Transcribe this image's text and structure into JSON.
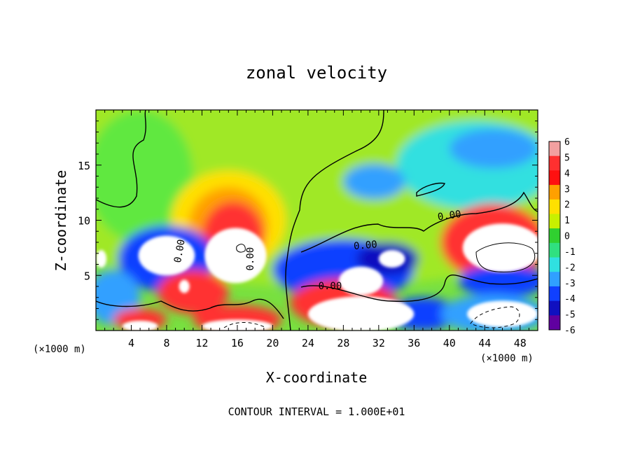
{
  "chart_data": {
    "type": "heatmap",
    "title": "zonal velocity",
    "xlabel": "X-coordinate",
    "ylabel": "Z-coordinate",
    "x_unit_label": "(×1000 m)",
    "x_unit_label_right": "(×1000 m)",
    "footer": "CONTOUR INTERVAL = 1.000E+01",
    "xlim": [
      0,
      50
    ],
    "ylim": [
      0,
      20
    ],
    "x_ticks": [
      4,
      8,
      12,
      16,
      20,
      24,
      28,
      32,
      36,
      40,
      44,
      48
    ],
    "y_ticks": [
      5,
      10,
      15
    ],
    "colorbar": {
      "levels": [
        6,
        5,
        4,
        3,
        2,
        1,
        0,
        -1,
        -2,
        -3,
        -4,
        -5,
        -6
      ],
      "colors": [
        "#f2a0a0",
        "#ff3030",
        "#ff1010",
        "#ffa000",
        "#ffe000",
        "#c8f000",
        "#30d030",
        "#30e080",
        "#30e0e0",
        "#30a0ff",
        "#1040ff",
        "#1010c0",
        "#6000a0"
      ]
    },
    "contour_labels": [
      {
        "text": "0.00",
        "x": 9.5,
        "y": 7.2,
        "angle": -80
      },
      {
        "text": "0.00",
        "x": 17.5,
        "y": 6.5,
        "angle": -90
      },
      {
        "text": "0.00",
        "x": 26.5,
        "y": 4.0,
        "angle": 0
      },
      {
        "text": "0.00",
        "x": 30.5,
        "y": 7.7,
        "angle": -5
      },
      {
        "text": "0.00",
        "x": 40.0,
        "y": 10.4,
        "angle": -8
      }
    ],
    "field_blobs": [
      {
        "cx": 25,
        "cy": 14,
        "rx": 40,
        "ry": 10,
        "color": "#a0e828"
      },
      {
        "cx": 5,
        "cy": 14,
        "rx": 6,
        "ry": 6,
        "color": "#60e840"
      },
      {
        "cx": 43,
        "cy": 15,
        "rx": 9,
        "ry": 4,
        "color": "#30e0e0"
      },
      {
        "cx": 45,
        "cy": 16.5,
        "rx": 5,
        "ry": 1.8,
        "color": "#30a0ff"
      },
      {
        "cx": 31.5,
        "cy": 13.5,
        "rx": 3.5,
        "ry": 1.6,
        "color": "#30a0ff"
      },
      {
        "cx": 15,
        "cy": 10,
        "rx": 6.5,
        "ry": 4.5,
        "color": "#ffe000"
      },
      {
        "cx": 15,
        "cy": 9.5,
        "rx": 4.5,
        "ry": 3.5,
        "color": "#ffa000"
      },
      {
        "cx": 15.5,
        "cy": 8.5,
        "rx": 3.5,
        "ry": 3.2,
        "color": "#ff3030"
      },
      {
        "cx": 8,
        "cy": 6.5,
        "rx": 5.5,
        "ry": 3,
        "color": "#1040ff"
      },
      {
        "cx": 2,
        "cy": 3,
        "rx": 3,
        "ry": 2.5,
        "color": "#30a0ff"
      },
      {
        "cx": 11,
        "cy": 3.5,
        "rx": 4,
        "ry": 2,
        "color": "#ff3030"
      },
      {
        "cx": 28,
        "cy": 5.5,
        "rx": 8,
        "ry": 2.8,
        "color": "#1040ff"
      },
      {
        "cx": 33,
        "cy": 6.5,
        "rx": 3.5,
        "ry": 1.5,
        "color": "#1010c0"
      },
      {
        "cx": 28,
        "cy": 2.5,
        "rx": 6,
        "ry": 2.2,
        "color": "#ff3030"
      },
      {
        "cx": 37,
        "cy": 1.5,
        "rx": 4,
        "ry": 1.5,
        "color": "#1040ff"
      },
      {
        "cx": 45,
        "cy": 8,
        "rx": 6,
        "ry": 3.5,
        "color": "#ff3030"
      },
      {
        "cx": 46,
        "cy": 4.5,
        "rx": 5,
        "ry": 1.5,
        "color": "#1040ff"
      },
      {
        "cx": 45,
        "cy": 1.5,
        "rx": 6,
        "ry": 1.8,
        "color": "#30a0ff"
      },
      {
        "cx": 16,
        "cy": 1,
        "rx": 5,
        "ry": 1.3,
        "color": "#ff3030"
      },
      {
        "cx": 5,
        "cy": 1,
        "rx": 3,
        "ry": 1,
        "color": "#ff3030"
      }
    ],
    "white_regions": [
      {
        "cx": 8,
        "cy": 6.8,
        "rx": 3.2,
        "ry": 1.8
      },
      {
        "cx": 15.8,
        "cy": 6.8,
        "rx": 3.5,
        "ry": 2.5
      },
      {
        "cx": 10,
        "cy": 4,
        "rx": 0.6,
        "ry": 0.6
      },
      {
        "cx": 0.6,
        "cy": 6.5,
        "rx": 0.6,
        "ry": 0.8
      },
      {
        "cx": 30,
        "cy": 4.5,
        "rx": 2.5,
        "ry": 1.3
      },
      {
        "cx": 33.5,
        "cy": 6.5,
        "rx": 1.5,
        "ry": 0.8
      },
      {
        "cx": 30,
        "cy": 1.5,
        "rx": 6,
        "ry": 1.6
      },
      {
        "cx": 46,
        "cy": 7.5,
        "rx": 4.5,
        "ry": 2.2
      },
      {
        "cx": 46,
        "cy": 1.5,
        "rx": 4,
        "ry": 1.2
      },
      {
        "cx": 16,
        "cy": 0.4,
        "rx": 4,
        "ry": 0.6
      },
      {
        "cx": 5,
        "cy": 0.4,
        "rx": 2,
        "ry": 0.5
      }
    ]
  }
}
